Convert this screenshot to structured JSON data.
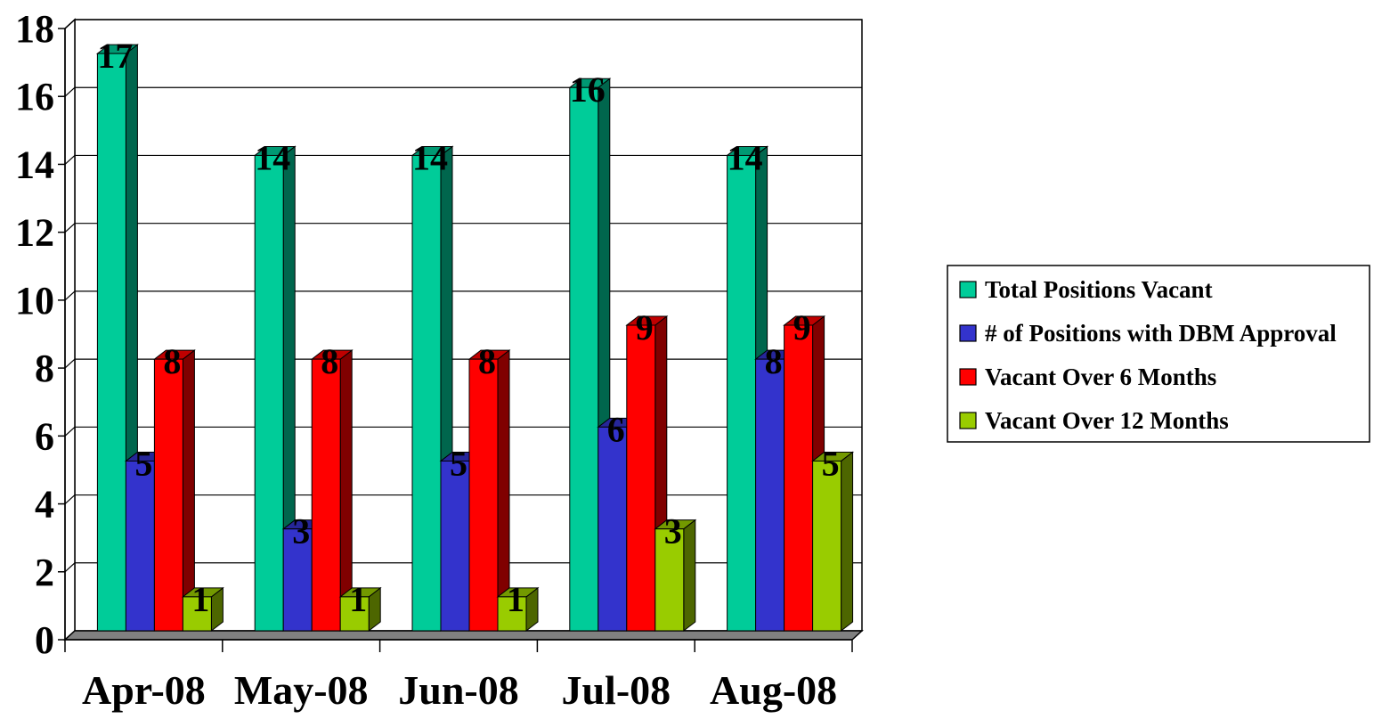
{
  "chart_data": {
    "type": "bar",
    "categories": [
      "Apr-08",
      "May-08",
      "Jun-08",
      "Jul-08",
      "Aug-08"
    ],
    "series": [
      {
        "name": "Total Positions Vacant",
        "values": [
          17,
          14,
          14,
          16,
          14
        ],
        "color": "#00CC99"
      },
      {
        "name": "# of Positions with DBM Approval",
        "values": [
          5,
          3,
          5,
          6,
          8
        ],
        "color": "#3333CC"
      },
      {
        "name": "Vacant Over 6 Months",
        "values": [
          8,
          8,
          8,
          9,
          9
        ],
        "color": "#FF0000"
      },
      {
        "name": "Vacant Over 12 Months",
        "values": [
          1,
          1,
          1,
          3,
          5
        ],
        "color": "#99CC00"
      }
    ],
    "ylim": [
      0,
      18
    ],
    "y_ticks": [
      0,
      2,
      4,
      6,
      8,
      10,
      12,
      14,
      16,
      18
    ],
    "grid": true,
    "legend_position": "right",
    "style": "3d-clustered-column",
    "data_labels": true
  }
}
